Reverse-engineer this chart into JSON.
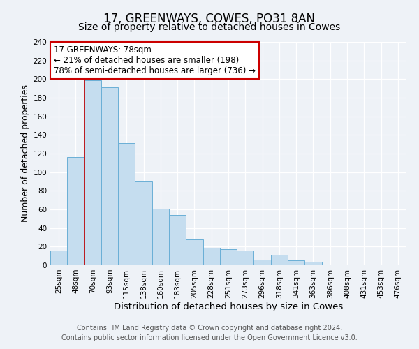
{
  "title": "17, GREENWAYS, COWES, PO31 8AN",
  "subtitle": "Size of property relative to detached houses in Cowes",
  "xlabel": "Distribution of detached houses by size in Cowes",
  "ylabel": "Number of detached properties",
  "bar_labels": [
    "25sqm",
    "48sqm",
    "70sqm",
    "93sqm",
    "115sqm",
    "138sqm",
    "160sqm",
    "183sqm",
    "205sqm",
    "228sqm",
    "251sqm",
    "273sqm",
    "296sqm",
    "318sqm",
    "341sqm",
    "363sqm",
    "386sqm",
    "408sqm",
    "431sqm",
    "453sqm",
    "476sqm"
  ],
  "bar_values": [
    16,
    116,
    199,
    191,
    131,
    90,
    61,
    54,
    28,
    19,
    17,
    16,
    6,
    11,
    5,
    4,
    0,
    0,
    0,
    0,
    1
  ],
  "bar_color": "#c5ddef",
  "bar_edge_color": "#6aafd6",
  "vline_x": 2.0,
  "vline_color": "#cc0000",
  "annotation_text": "17 GREENWAYS: 78sqm\n← 21% of detached houses are smaller (198)\n78% of semi-detached houses are larger (736) →",
  "annotation_box_color": "#ffffff",
  "annotation_box_edge": "#cc0000",
  "ylim": [
    0,
    240
  ],
  "yticks": [
    0,
    20,
    40,
    60,
    80,
    100,
    120,
    140,
    160,
    180,
    200,
    220,
    240
  ],
  "footer_line1": "Contains HM Land Registry data © Crown copyright and database right 2024.",
  "footer_line2": "Contains public sector information licensed under the Open Government Licence v3.0.",
  "background_color": "#eef2f7",
  "grid_color": "#ffffff",
  "title_fontsize": 12,
  "subtitle_fontsize": 10,
  "xlabel_fontsize": 9.5,
  "ylabel_fontsize": 9,
  "tick_fontsize": 7.5,
  "annotation_fontsize": 8.5,
  "footer_fontsize": 7
}
